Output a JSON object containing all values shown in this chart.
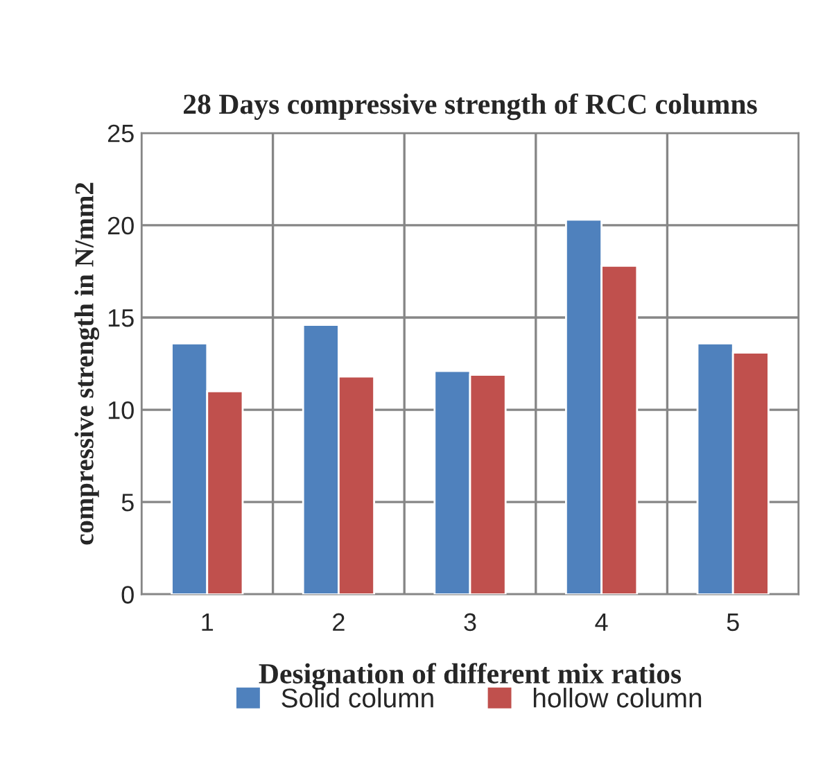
{
  "chart_data": {
    "type": "bar",
    "title": "28 Days compressive strength of RCC columns",
    "xlabel": "Designation of different mix ratios",
    "ylabel": "compressive strength in N/mm2",
    "categories": [
      "1",
      "2",
      "3",
      "4",
      "5"
    ],
    "series": [
      {
        "name": "Solid column",
        "color": "#4f81bd",
        "values": [
          13.6,
          14.6,
          12.1,
          20.3,
          13.6
        ]
      },
      {
        "name": "hollow column",
        "color": "#c0504d",
        "values": [
          11.0,
          11.8,
          11.9,
          17.8,
          13.1
        ]
      }
    ],
    "ylim": [
      0,
      25
    ],
    "yticks": [
      0,
      5,
      10,
      15,
      20,
      25
    ],
    "grid": true,
    "legend": "bottom"
  }
}
